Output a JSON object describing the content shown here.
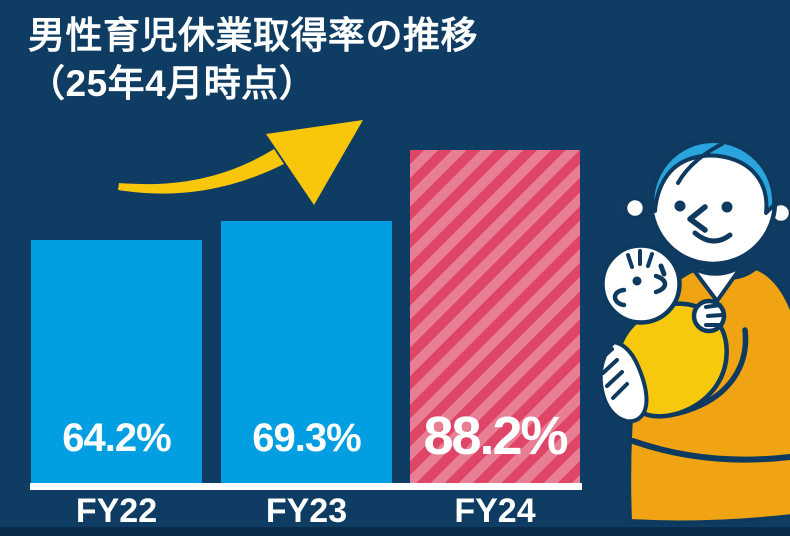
{
  "title": {
    "line1": "男性育児休業取得率の推移",
    "line2": "（25年4月時点）"
  },
  "chart_data": {
    "type": "bar",
    "title": "男性育児休業取得率の推移（25年4月時点）",
    "categories": [
      "FY22",
      "FY23",
      "FY24"
    ],
    "values": [
      64.2,
      69.3,
      88.2
    ],
    "value_labels": [
      "64.2%",
      "69.3%",
      "88.2%"
    ],
    "unit": "%",
    "ylim": [
      0,
      100
    ],
    "grid": false,
    "legend": "none",
    "highlight_index": 2,
    "annotations": [
      "upward-trend-arrow"
    ]
  },
  "colors": {
    "background": "#0e3c63",
    "bar_blue": "#019fe1",
    "highlight_stripe_dark": "#df4566",
    "highlight_stripe_light": "#e87e93",
    "arrow_yellow": "#f8c70b",
    "sweater_orange": "#f0a414",
    "blanket_yellow": "#f6c90d",
    "hair_blue": "#2aa4dc",
    "text_white": "#ffffff"
  },
  "illustration": {
    "name": "father-holding-baby",
    "elements": [
      "father-with-blue-hair",
      "white-shirt-collar",
      "orange-sweater",
      "baby-in-yellow-blanket"
    ]
  }
}
